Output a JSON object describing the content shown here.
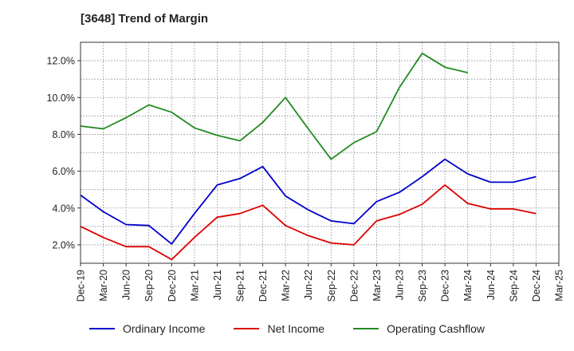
{
  "chart_data": {
    "type": "line",
    "title": "[3648]  Trend of Margin",
    "x": [
      "Dec-19",
      "Mar-20",
      "Jun-20",
      "Sep-20",
      "Dec-20",
      "Mar-21",
      "Jun-21",
      "Sep-21",
      "Dec-21",
      "Mar-22",
      "Jun-22",
      "Sep-22",
      "Dec-22",
      "Mar-23",
      "Jun-23",
      "Sep-23",
      "Dec-23",
      "Mar-24",
      "Jun-24",
      "Sep-24",
      "Dec-24",
      "Mar-25"
    ],
    "yticks": [
      "2.0%",
      "4.0%",
      "6.0%",
      "8.0%",
      "10.0%",
      "12.0%"
    ],
    "ylim": [
      1.0,
      13.0
    ],
    "grid": true,
    "legend_position": "bottom",
    "series": [
      {
        "name": "Ordinary Income",
        "color": "#0000cc",
        "values": [
          4.7,
          3.8,
          3.1,
          3.05,
          2.05,
          3.7,
          5.25,
          5.6,
          6.25,
          4.65,
          3.9,
          3.3,
          3.15,
          4.35,
          4.85,
          5.7,
          6.65,
          5.85,
          5.4,
          5.4,
          5.7,
          null
        ]
      },
      {
        "name": "Net Income",
        "color": "#dd0000",
        "values": [
          3.0,
          2.4,
          1.9,
          1.9,
          1.2,
          2.4,
          3.5,
          3.7,
          4.15,
          3.05,
          2.5,
          2.1,
          2.0,
          3.3,
          3.65,
          4.2,
          5.25,
          4.25,
          3.95,
          3.95,
          3.7,
          null
        ]
      },
      {
        "name": "Operating Cashflow",
        "color": "#228b22",
        "values": [
          8.45,
          8.3,
          8.9,
          9.6,
          9.2,
          8.35,
          7.95,
          7.65,
          8.65,
          10.0,
          8.3,
          6.65,
          7.55,
          8.15,
          10.55,
          12.4,
          11.65,
          11.35,
          null,
          null,
          null,
          null
        ]
      }
    ]
  }
}
